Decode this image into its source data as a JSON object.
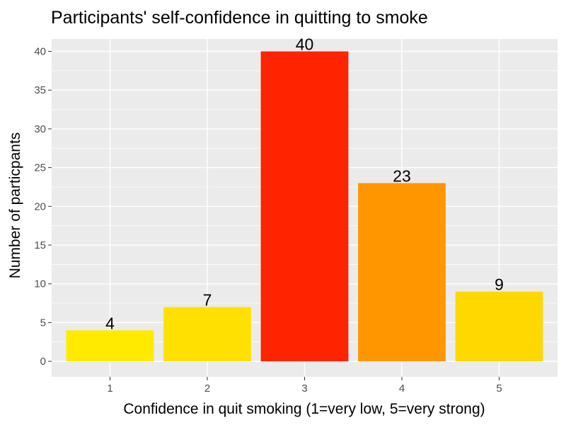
{
  "chart_data": {
    "type": "bar",
    "title": "Participants' self-confidence in quitting to smoke",
    "xlabel": "Confidence in  quit smoking (1=very low, 5=very strong)",
    "ylabel": "Number of particpants",
    "categories": [
      "1",
      "2",
      "3",
      "4",
      "5"
    ],
    "values": [
      4,
      7,
      40,
      23,
      9
    ],
    "data_labels": [
      "4",
      "7",
      "40",
      "23",
      "9"
    ],
    "bar_colors": [
      "#FFEA00",
      "#FFE000",
      "#FF2400",
      "#FF9600",
      "#FFD800"
    ],
    "ylim": [
      -2,
      41.6
    ],
    "yticks": [
      0,
      5,
      10,
      15,
      20,
      25,
      30,
      35,
      40
    ],
    "ytick_labels": [
      "0",
      "5",
      "10",
      "15",
      "20",
      "25",
      "30",
      "35",
      "40"
    ],
    "grid": true,
    "legend": "none",
    "panel_background": "#EBEBEB",
    "grid_color": "#FFFFFF"
  }
}
